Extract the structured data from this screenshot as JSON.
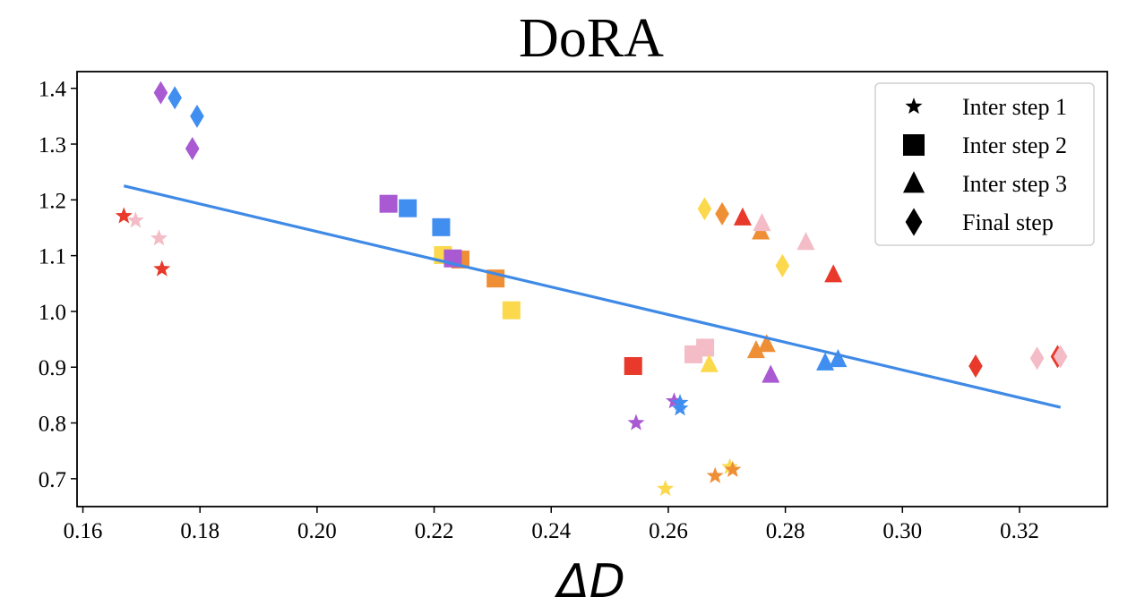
{
  "chart_data": {
    "type": "scatter",
    "title": "DoRA",
    "xlabel": "ΔD",
    "ylabel": "",
    "xlim": [
      0.159,
      0.335
    ],
    "ylim": [
      0.65,
      1.43
    ],
    "xticks": [
      0.16,
      0.18,
      0.2,
      0.22,
      0.24,
      0.26,
      0.28,
      0.3,
      0.32
    ],
    "xtick_labels": [
      "0.16",
      "0.18",
      "0.20",
      "0.22",
      "0.24",
      "0.26",
      "0.28",
      "0.30",
      "0.32"
    ],
    "yticks": [
      0.7,
      0.8,
      0.9,
      1.0,
      1.1,
      1.2,
      1.3,
      1.4
    ],
    "ytick_labels": [
      "0.7",
      "0.8",
      "0.9",
      "1.0",
      "1.1",
      "1.2",
      "1.3",
      "1.4"
    ],
    "grid": false,
    "legend_position": "top-right",
    "legend": [
      {
        "marker": "star",
        "label": "Inter step 1"
      },
      {
        "marker": "square",
        "label": "Inter step 2"
      },
      {
        "marker": "triangle",
        "label": "Inter step 3"
      },
      {
        "marker": "diamond",
        "label": "Final step"
      }
    ],
    "colors": {
      "red": "#e8392a",
      "pink": "#f3bcc6",
      "purple": "#a95ad2",
      "blue": "#3f8ef0",
      "orange": "#ef8f35",
      "yellow": "#fbd84c",
      "fit_line": "#3f8ae6"
    },
    "trend_line": {
      "x": [
        0.167,
        0.327
      ],
      "y": [
        1.225,
        0.828
      ]
    },
    "points": [
      {
        "marker": "star",
        "color": "red",
        "x": 0.167,
        "y": 1.171
      },
      {
        "marker": "star",
        "color": "pink",
        "x": 0.169,
        "y": 1.163
      },
      {
        "marker": "star",
        "color": "pink",
        "x": 0.173,
        "y": 1.131
      },
      {
        "marker": "star",
        "color": "red",
        "x": 0.1735,
        "y": 1.076
      },
      {
        "marker": "star",
        "color": "purple",
        "x": 0.2545,
        "y": 0.8
      },
      {
        "marker": "star",
        "color": "purple",
        "x": 0.261,
        "y": 0.839
      },
      {
        "marker": "star",
        "color": "blue",
        "x": 0.262,
        "y": 0.836
      },
      {
        "marker": "star",
        "color": "blue",
        "x": 0.262,
        "y": 0.826
      },
      {
        "marker": "star",
        "color": "yellow",
        "x": 0.2595,
        "y": 0.682
      },
      {
        "marker": "star",
        "color": "orange",
        "x": 0.268,
        "y": 0.705
      },
      {
        "marker": "star",
        "color": "yellow",
        "x": 0.2705,
        "y": 0.721
      },
      {
        "marker": "star",
        "color": "orange",
        "x": 0.271,
        "y": 0.716
      },
      {
        "marker": "square",
        "color": "purple",
        "x": 0.2122,
        "y": 1.193
      },
      {
        "marker": "square",
        "color": "blue",
        "x": 0.2155,
        "y": 1.185
      },
      {
        "marker": "square",
        "color": "blue",
        "x": 0.2212,
        "y": 1.151
      },
      {
        "marker": "square",
        "color": "yellow",
        "x": 0.2215,
        "y": 1.101
      },
      {
        "marker": "square",
        "color": "orange",
        "x": 0.2245,
        "y": 1.093
      },
      {
        "marker": "square",
        "color": "purple",
        "x": 0.2232,
        "y": 1.095
      },
      {
        "marker": "square",
        "color": "orange",
        "x": 0.2305,
        "y": 1.059
      },
      {
        "marker": "square",
        "color": "yellow",
        "x": 0.2332,
        "y": 1.002
      },
      {
        "marker": "square",
        "color": "red",
        "x": 0.254,
        "y": 0.902
      },
      {
        "marker": "square",
        "color": "pink",
        "x": 0.2643,
        "y": 0.923
      },
      {
        "marker": "square",
        "color": "pink",
        "x": 0.2663,
        "y": 0.935
      },
      {
        "marker": "triangle",
        "color": "red",
        "x": 0.2727,
        "y": 1.168
      },
      {
        "marker": "triangle",
        "color": "orange",
        "x": 0.2758,
        "y": 1.143
      },
      {
        "marker": "triangle",
        "color": "pink",
        "x": 0.276,
        "y": 1.158
      },
      {
        "marker": "triangle",
        "color": "pink",
        "x": 0.2835,
        "y": 1.124
      },
      {
        "marker": "triangle",
        "color": "red",
        "x": 0.2882,
        "y": 1.066
      },
      {
        "marker": "triangle",
        "color": "yellow",
        "x": 0.267,
        "y": 0.905
      },
      {
        "marker": "triangle",
        "color": "orange",
        "x": 0.275,
        "y": 0.93
      },
      {
        "marker": "triangle",
        "color": "orange",
        "x": 0.2768,
        "y": 0.941
      },
      {
        "marker": "triangle",
        "color": "purple",
        "x": 0.2775,
        "y": 0.886
      },
      {
        "marker": "triangle",
        "color": "blue",
        "x": 0.2868,
        "y": 0.908
      },
      {
        "marker": "triangle",
        "color": "blue",
        "x": 0.289,
        "y": 0.914
      },
      {
        "marker": "diamond",
        "color": "purple",
        "x": 0.1733,
        "y": 1.392
      },
      {
        "marker": "diamond",
        "color": "blue",
        "x": 0.1757,
        "y": 1.383
      },
      {
        "marker": "diamond",
        "color": "blue",
        "x": 0.1795,
        "y": 1.35
      },
      {
        "marker": "diamond",
        "color": "purple",
        "x": 0.1787,
        "y": 1.292
      },
      {
        "marker": "diamond",
        "color": "yellow",
        "x": 0.2662,
        "y": 1.184
      },
      {
        "marker": "diamond",
        "color": "orange",
        "x": 0.2692,
        "y": 1.175
      },
      {
        "marker": "diamond",
        "color": "yellow",
        "x": 0.2795,
        "y": 1.082
      },
      {
        "marker": "diamond",
        "color": "red",
        "x": 0.3125,
        "y": 0.902
      },
      {
        "marker": "diamond",
        "color": "pink",
        "x": 0.323,
        "y": 0.916
      },
      {
        "marker": "diamond",
        "color": "red",
        "x": 0.3265,
        "y": 0.919
      },
      {
        "marker": "diamond",
        "color": "pink",
        "x": 0.327,
        "y": 0.919
      }
    ]
  }
}
